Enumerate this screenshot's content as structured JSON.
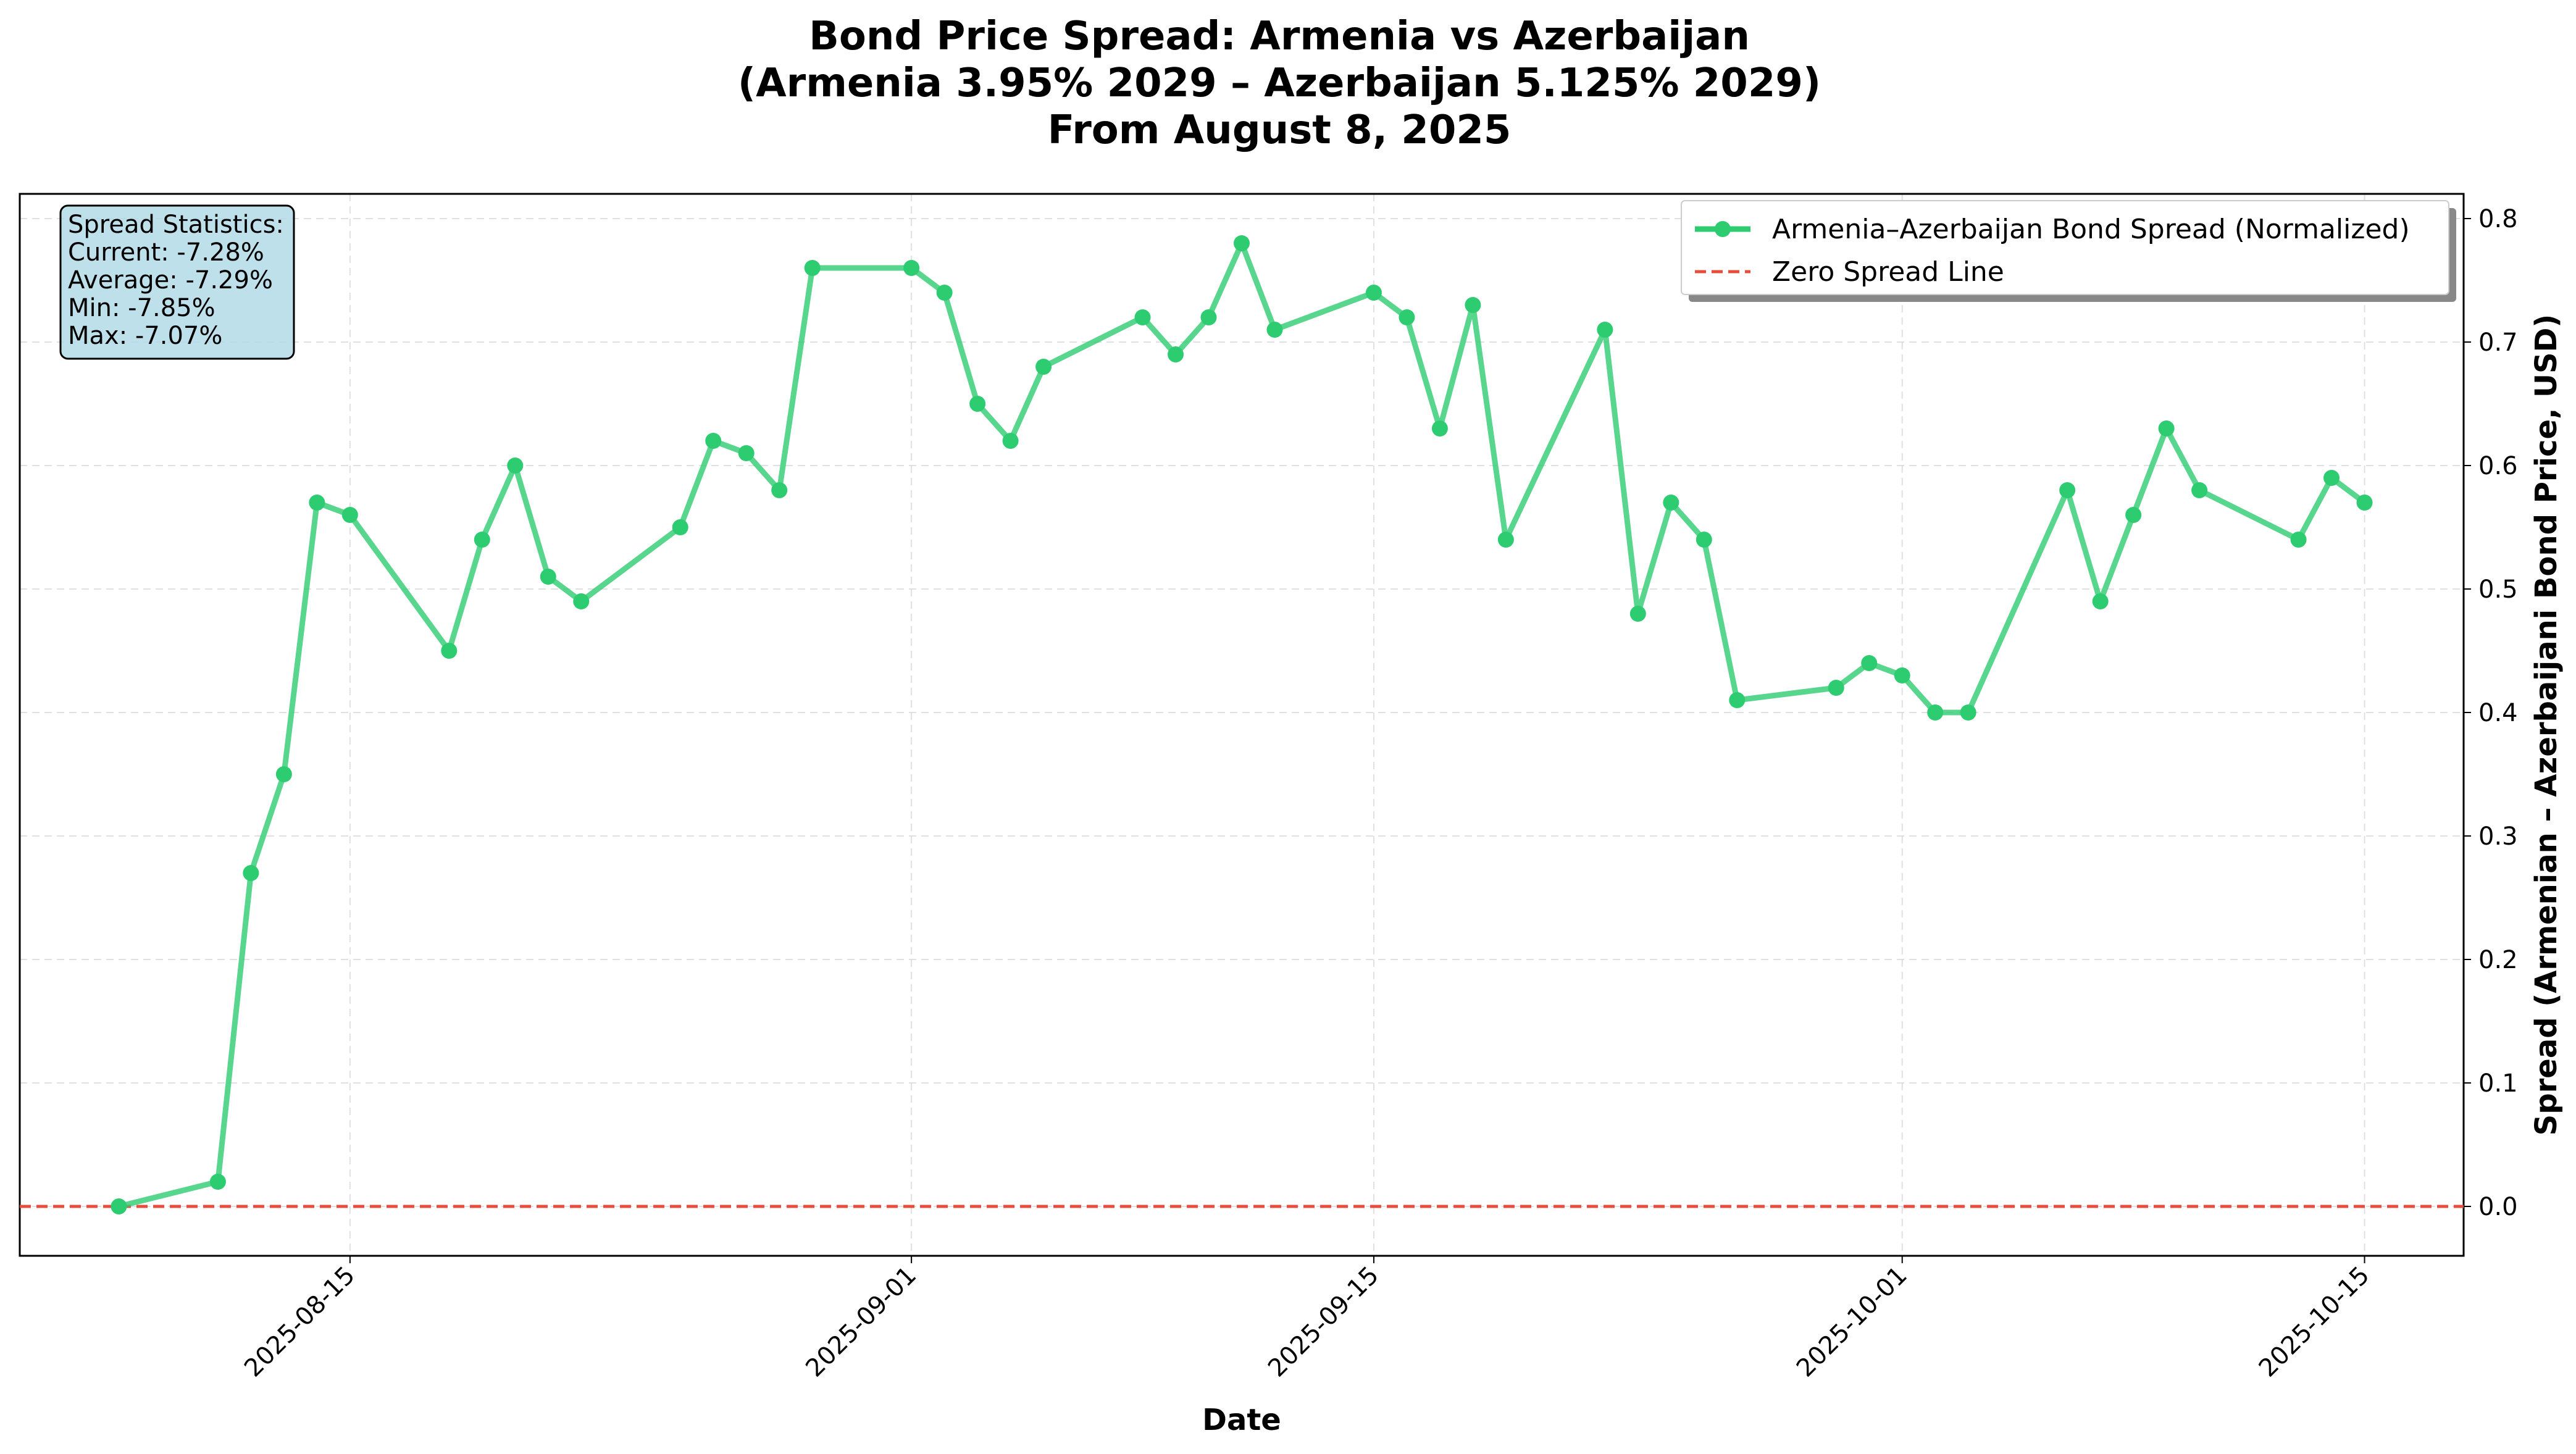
{
  "chart_data": {
    "type": "line",
    "title_lines": [
      "Bond Price Spread: Armenia vs Azerbaijan",
      "(Armenia 3.95% 2029 – Azerbaijan 5.125% 2029)",
      "From August 8, 2025"
    ],
    "xlabel": "Date",
    "ylabel": "Spread (Armenian – Azerbaijani Bond Price, USD)",
    "xlim": [
      "2025-08-05",
      "2025-10-18"
    ],
    "ylim": [
      -0.04,
      0.82
    ],
    "x_ticks": [
      "2025-08-15",
      "2025-09-01",
      "2025-09-15",
      "2025-10-01",
      "2025-10-15"
    ],
    "y_ticks": [
      0.0,
      0.1,
      0.2,
      0.3,
      0.4,
      0.5,
      0.6,
      0.7,
      0.8
    ],
    "grid": true,
    "legend_position": "top-right",
    "series": [
      {
        "name": "Armenia–Azerbaijan Bond Spread (Normalized)",
        "color": "#2ecc71",
        "x": [
          "2025-08-08",
          "2025-08-11",
          "2025-08-12",
          "2025-08-13",
          "2025-08-14",
          "2025-08-15",
          "2025-08-18",
          "2025-08-19",
          "2025-08-20",
          "2025-08-21",
          "2025-08-22",
          "2025-08-25",
          "2025-08-26",
          "2025-08-27",
          "2025-08-28",
          "2025-08-29",
          "2025-09-01",
          "2025-09-02",
          "2025-09-03",
          "2025-09-04",
          "2025-09-05",
          "2025-09-08",
          "2025-09-09",
          "2025-09-10",
          "2025-09-11",
          "2025-09-12",
          "2025-09-15",
          "2025-09-16",
          "2025-09-17",
          "2025-09-18",
          "2025-09-19",
          "2025-09-22",
          "2025-09-23",
          "2025-09-24",
          "2025-09-25",
          "2025-09-26",
          "2025-09-29",
          "2025-09-30",
          "2025-10-01",
          "2025-10-02",
          "2025-10-03",
          "2025-10-06",
          "2025-10-07",
          "2025-10-08",
          "2025-10-09",
          "2025-10-10",
          "2025-10-13",
          "2025-10-14",
          "2025-10-15"
        ],
        "values": [
          0.0,
          0.02,
          0.27,
          0.35,
          0.57,
          0.56,
          0.45,
          0.54,
          0.6,
          0.51,
          0.49,
          0.55,
          0.62,
          0.61,
          0.58,
          0.76,
          0.76,
          0.74,
          0.65,
          0.62,
          0.68,
          0.72,
          0.69,
          0.72,
          0.78,
          0.71,
          0.74,
          0.72,
          0.63,
          0.73,
          0.54,
          0.71,
          0.48,
          0.57,
          0.54,
          0.41,
          0.42,
          0.44,
          0.43,
          0.4,
          0.4,
          0.58,
          0.49,
          0.56,
          0.63,
          0.58,
          0.54,
          0.59,
          0.57
        ]
      }
    ],
    "reference_line": {
      "name": "Zero Spread Line",
      "y": 0.0,
      "color": "#e74c3c"
    },
    "stats_box": {
      "background": "#add8e6",
      "lines": [
        "Spread Statistics:",
        "Current: -7.28%",
        "Average: -7.29%",
        "Min: -7.85%",
        "Max: -7.07%"
      ]
    }
  }
}
